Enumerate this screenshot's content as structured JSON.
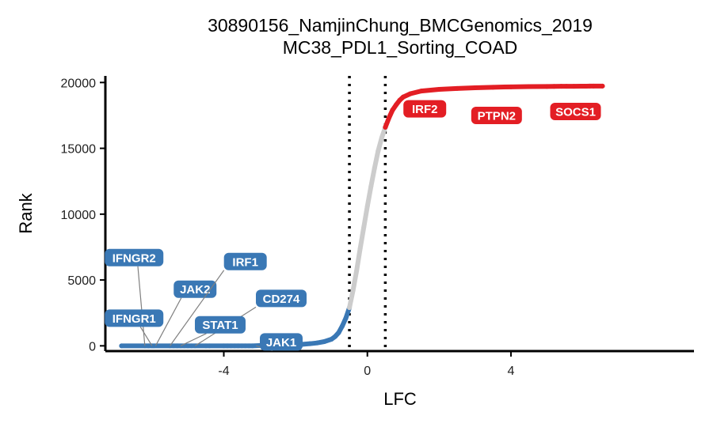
{
  "chart_data": {
    "type": "scatter",
    "title": "30890156_NamjinChung_BMCGenomics_2019",
    "subtitle": "MC38_PDL1_Sorting_COAD",
    "xlabel": "LFC",
    "ylabel": "Rank",
    "xlim": [
      -7.3,
      9.1
    ],
    "ylim": [
      -400,
      20500
    ],
    "x_ticks": [
      -4,
      0,
      4
    ],
    "x_tick_labels": [
      "-4",
      "0",
      "4"
    ],
    "y_ticks": [
      0,
      5000,
      10000,
      15000,
      20000
    ],
    "y_tick_labels": [
      "0",
      "5000",
      "10000",
      "15000",
      "20000"
    ],
    "grid": false,
    "legend": "none",
    "thresholds": [
      -0.5,
      0.5
    ],
    "colors": {
      "down": "#3A78B5",
      "neutral": "#CCCCCC",
      "up": "#E31E24"
    },
    "series": [
      {
        "group": "down",
        "points": [
          [
            -6.85,
            0
          ],
          [
            -6.2,
            0
          ],
          [
            -6.1,
            0
          ],
          [
            -6.0,
            0
          ],
          [
            -5.95,
            0
          ],
          [
            -5.5,
            0
          ],
          [
            -5.4,
            0
          ],
          [
            -5.3,
            0
          ],
          [
            -5.2,
            0
          ],
          [
            -5.1,
            0
          ],
          [
            -5.0,
            0
          ],
          [
            -4.9,
            0
          ],
          [
            -4.8,
            0
          ],
          [
            -4.5,
            0
          ],
          [
            -4.4,
            0
          ],
          [
            -4.0,
            0
          ],
          [
            -3.9,
            0
          ],
          [
            -3.8,
            0
          ],
          [
            -3.7,
            0
          ],
          [
            -3.6,
            0
          ],
          [
            -3.5,
            0
          ],
          [
            -3.4,
            0
          ],
          [
            -3.3,
            0
          ],
          [
            -3.2,
            0
          ],
          [
            -3.0,
            20
          ],
          [
            -2.8,
            30
          ],
          [
            -2.6,
            40
          ],
          [
            -2.4,
            50
          ],
          [
            -2.2,
            70
          ],
          [
            -2.0,
            90
          ],
          [
            -1.8,
            120
          ],
          [
            -1.6,
            160
          ],
          [
            -1.4,
            220
          ],
          [
            -1.2,
            320
          ],
          [
            -1.0,
            500
          ],
          [
            -0.9,
            700
          ],
          [
            -0.8,
            1000
          ],
          [
            -0.7,
            1500
          ],
          [
            -0.6,
            2100
          ],
          [
            -0.5,
            2900
          ]
        ]
      },
      {
        "group": "neutral",
        "points": [
          [
            -0.5,
            2900
          ],
          [
            -0.4,
            4200
          ],
          [
            -0.3,
            5700
          ],
          [
            -0.2,
            7400
          ],
          [
            -0.1,
            9000
          ],
          [
            0.0,
            10600
          ],
          [
            0.1,
            12100
          ],
          [
            0.2,
            13500
          ],
          [
            0.3,
            14800
          ],
          [
            0.4,
            15800
          ],
          [
            0.5,
            16600
          ]
        ]
      },
      {
        "group": "up",
        "points": [
          [
            0.5,
            16600
          ],
          [
            0.6,
            17300
          ],
          [
            0.7,
            17900
          ],
          [
            0.8,
            18300
          ],
          [
            0.9,
            18650
          ],
          [
            1.0,
            18900
          ],
          [
            1.2,
            19150
          ],
          [
            1.5,
            19350
          ],
          [
            2.0,
            19480
          ],
          [
            2.5,
            19550
          ],
          [
            3.0,
            19600
          ],
          [
            3.5,
            19640
          ],
          [
            4.0,
            19670
          ],
          [
            4.5,
            19690
          ],
          [
            5.0,
            19700
          ],
          [
            5.2,
            19705
          ],
          [
            5.4,
            19710
          ],
          [
            5.55,
            19712
          ],
          [
            5.75,
            19715
          ],
          [
            5.95,
            19718
          ],
          [
            6.0,
            19720
          ],
          [
            6.1,
            19722
          ],
          [
            6.2,
            19725
          ],
          [
            6.3,
            19728
          ],
          [
            6.55,
            19730
          ]
        ]
      }
    ],
    "annotations": [
      {
        "text": "IRF2",
        "group": "up",
        "x": 1.6,
        "y": 18000
      },
      {
        "text": "PTPN2",
        "group": "up",
        "x": 3.6,
        "y": 17500
      },
      {
        "text": "SOCS1",
        "group": "up",
        "x": 5.8,
        "y": 17800
      },
      {
        "text": "IFNGR2",
        "group": "down",
        "x": -6.5,
        "y": 6700,
        "point_x": -6.2,
        "point_y": 0
      },
      {
        "text": "IFNGR1",
        "group": "down",
        "x": -6.5,
        "y": 2100,
        "point_x": -6.0,
        "point_y": 0
      },
      {
        "text": "JAK2",
        "group": "down",
        "x": -4.8,
        "y": 4300,
        "point_x": -5.9,
        "point_y": 0
      },
      {
        "text": "IRF1",
        "group": "down",
        "x": -3.4,
        "y": 6400,
        "point_x": -5.5,
        "point_y": 0
      },
      {
        "text": "CD274",
        "group": "down",
        "x": -2.4,
        "y": 3600,
        "point_x": -4.8,
        "point_y": 0
      },
      {
        "text": "STAT1",
        "group": "down",
        "x": -4.1,
        "y": 1600,
        "point_x": -5.2,
        "point_y": 0
      },
      {
        "text": "JAK1",
        "group": "down",
        "x": -2.4,
        "y": 300,
        "point_x": -3.1,
        "point_y": 0
      }
    ]
  }
}
